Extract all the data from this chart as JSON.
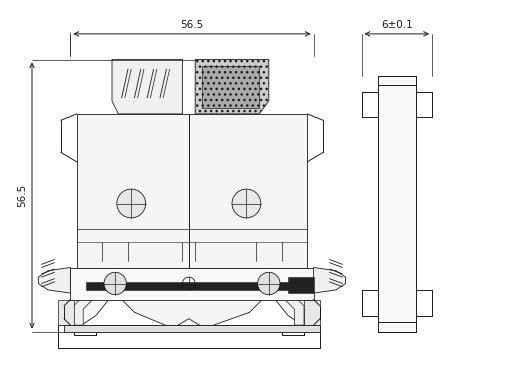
{
  "bg_color": "#ffffff",
  "lc": "#1a1a1a",
  "dim_color": "#1a1a1a",
  "dim_width": "56.5",
  "dim_side": "6±0.1",
  "fig_width": 5.12,
  "fig_height": 3.75,
  "dpi": 100
}
